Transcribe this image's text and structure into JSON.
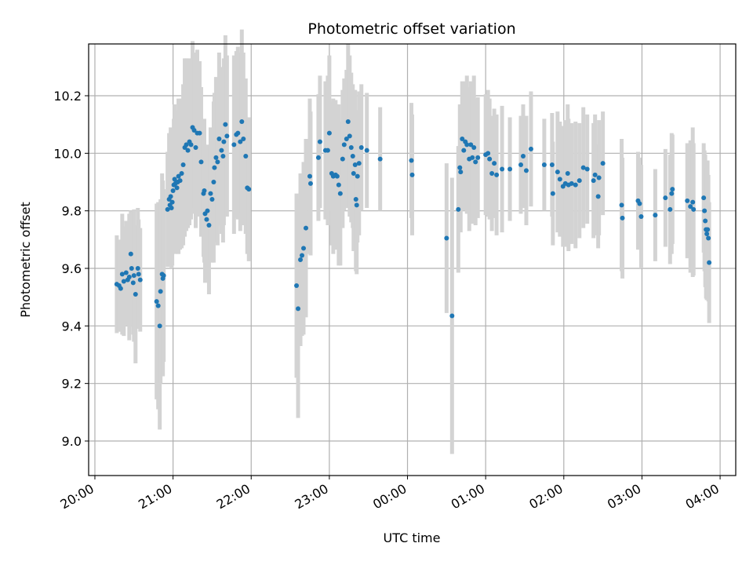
{
  "chart_data": {
    "type": "scatter",
    "title": "Photometric offset variation",
    "xlabel": "UTC time",
    "ylabel": "Photometric offset",
    "x_tick_labels": [
      "20:00",
      "21:00",
      "22:00",
      "23:00",
      "00:00",
      "01:00",
      "02:00",
      "03:00",
      "04:00"
    ],
    "x_tick_hours": [
      0,
      1,
      2,
      3,
      4,
      5,
      6,
      7,
      8
    ],
    "x_unit": "hours since 20:00 UTC",
    "xlim": [
      -0.08,
      8.2
    ],
    "y_ticks": [
      9.0,
      9.2,
      9.4,
      9.6,
      9.8,
      10.0,
      10.2
    ],
    "y_tick_labels": [
      "9.0",
      "9.2",
      "9.4",
      "9.6",
      "9.8",
      "10.0",
      "10.2"
    ],
    "ylim": [
      8.88,
      10.38
    ],
    "grid": true,
    "marker_color": "#1f77b4",
    "errorbar_color": "#d3d3d3",
    "points": [
      [
        0.28,
        9.545,
        0.17
      ],
      [
        0.31,
        9.54,
        0.16
      ],
      [
        0.33,
        9.53,
        0.15
      ],
      [
        0.35,
        9.58,
        0.21
      ],
      [
        0.37,
        9.555,
        0.19
      ],
      [
        0.4,
        9.585,
        0.18
      ],
      [
        0.42,
        9.56,
        0.16
      ],
      [
        0.44,
        9.57,
        0.22
      ],
      [
        0.46,
        9.65,
        0.15
      ],
      [
        0.47,
        9.6,
        0.2
      ],
      [
        0.49,
        9.55,
        0.18
      ],
      [
        0.5,
        9.575,
        0.23
      ],
      [
        0.52,
        9.51,
        0.24
      ],
      [
        0.55,
        9.6,
        0.21
      ],
      [
        0.56,
        9.58,
        0.19
      ],
      [
        0.58,
        9.56,
        0.18
      ],
      [
        0.79,
        9.485,
        0.34
      ],
      [
        0.81,
        9.47,
        0.36
      ],
      [
        0.83,
        9.4,
        0.36
      ],
      [
        0.84,
        9.52,
        0.32
      ],
      [
        0.86,
        9.58,
        0.35
      ],
      [
        0.87,
        9.565,
        0.34
      ],
      [
        0.88,
        9.575,
        0.3
      ],
      [
        0.93,
        9.805,
        0.2
      ],
      [
        0.95,
        9.84,
        0.23
      ],
      [
        0.96,
        9.82,
        0.19
      ],
      [
        0.97,
        9.85,
        0.24
      ],
      [
        0.98,
        9.81,
        0.21
      ],
      [
        0.99,
        9.83,
        0.22
      ],
      [
        1.0,
        9.87,
        0.2
      ],
      [
        1.01,
        9.89,
        0.23
      ],
      [
        1.02,
        9.91,
        0.26
      ],
      [
        1.03,
        9.895,
        0.24
      ],
      [
        1.05,
        9.88,
        0.22
      ],
      [
        1.06,
        9.9,
        0.25
      ],
      [
        1.07,
        9.92,
        0.27
      ],
      [
        1.09,
        9.905,
        0.24
      ],
      [
        1.11,
        9.93,
        0.26
      ],
      [
        1.13,
        9.96,
        0.28
      ],
      [
        1.15,
        10.02,
        0.31
      ],
      [
        1.17,
        10.03,
        0.3
      ],
      [
        1.19,
        10.01,
        0.27
      ],
      [
        1.21,
        10.04,
        0.29
      ],
      [
        1.23,
        10.03,
        0.26
      ],
      [
        1.25,
        10.09,
        0.3
      ],
      [
        1.27,
        10.08,
        0.27
      ],
      [
        1.29,
        10.02,
        0.28
      ],
      [
        1.31,
        10.07,
        0.29
      ],
      [
        1.34,
        10.07,
        0.25
      ],
      [
        1.36,
        9.97,
        0.26
      ],
      [
        1.39,
        9.86,
        0.22
      ],
      [
        1.4,
        9.87,
        0.25
      ],
      [
        1.41,
        9.79,
        0.24
      ],
      [
        1.43,
        9.77,
        0.21
      ],
      [
        1.44,
        9.8,
        0.23
      ],
      [
        1.46,
        9.75,
        0.24
      ],
      [
        1.48,
        9.86,
        0.23
      ],
      [
        1.5,
        9.84,
        0.22
      ],
      [
        1.52,
        9.9,
        0.28
      ],
      [
        1.53,
        9.95,
        0.26
      ],
      [
        1.55,
        9.985,
        0.28
      ],
      [
        1.57,
        9.97,
        0.29
      ],
      [
        1.59,
        10.05,
        0.3
      ],
      [
        1.62,
        10.01,
        0.29
      ],
      [
        1.64,
        9.99,
        0.3
      ],
      [
        1.65,
        10.04,
        0.29
      ],
      [
        1.67,
        10.1,
        0.31
      ],
      [
        1.69,
        10.06,
        0.28
      ],
      [
        1.78,
        10.03,
        0.31
      ],
      [
        1.81,
        10.065,
        0.29
      ],
      [
        1.83,
        10.07,
        0.3
      ],
      [
        1.86,
        10.04,
        0.31
      ],
      [
        1.88,
        10.11,
        0.32
      ],
      [
        1.9,
        10.05,
        0.3
      ],
      [
        1.93,
        9.99,
        0.27
      ],
      [
        1.95,
        9.88,
        0.23
      ],
      [
        1.97,
        9.875,
        0.25
      ],
      [
        2.58,
        9.54,
        0.32
      ],
      [
        2.6,
        9.46,
        0.38
      ],
      [
        2.63,
        9.63,
        0.3
      ],
      [
        2.65,
        9.645,
        0.28
      ],
      [
        2.67,
        9.67,
        0.3
      ],
      [
        2.7,
        9.74,
        0.31
      ],
      [
        2.75,
        9.92,
        0.27
      ],
      [
        2.76,
        9.895,
        0.25
      ],
      [
        2.86,
        9.985,
        0.22
      ],
      [
        2.88,
        10.04,
        0.23
      ],
      [
        2.95,
        10.01,
        0.24
      ],
      [
        2.98,
        10.01,
        0.26
      ],
      [
        3.0,
        10.07,
        0.27
      ],
      [
        3.03,
        9.93,
        0.25
      ],
      [
        3.05,
        9.92,
        0.27
      ],
      [
        3.08,
        9.925,
        0.26
      ],
      [
        3.1,
        9.92,
        0.23
      ],
      [
        3.12,
        9.89,
        0.28
      ],
      [
        3.14,
        9.86,
        0.25
      ],
      [
        3.17,
        9.98,
        0.24
      ],
      [
        3.19,
        10.03,
        0.23
      ],
      [
        3.22,
        10.05,
        0.24
      ],
      [
        3.24,
        10.11,
        0.27
      ],
      [
        3.26,
        10.06,
        0.28
      ],
      [
        3.28,
        10.02,
        0.26
      ],
      [
        3.3,
        9.99,
        0.25
      ],
      [
        3.31,
        9.93,
        0.27
      ],
      [
        3.33,
        9.96,
        0.26
      ],
      [
        3.34,
        9.84,
        0.25
      ],
      [
        3.35,
        9.82,
        0.24
      ],
      [
        3.36,
        9.92,
        0.23
      ],
      [
        3.38,
        9.965,
        0.25
      ],
      [
        3.41,
        10.02,
        0.22
      ],
      [
        3.48,
        10.01,
        0.2
      ],
      [
        3.65,
        9.98,
        0.18
      ],
      [
        4.05,
        9.975,
        0.2
      ],
      [
        4.06,
        9.925,
        0.21
      ],
      [
        4.5,
        9.705,
        0.26
      ],
      [
        4.57,
        9.435,
        0.48
      ],
      [
        4.65,
        9.805,
        0.22
      ],
      [
        4.67,
        9.95,
        0.22
      ],
      [
        4.68,
        9.935,
        0.21
      ],
      [
        4.7,
        10.05,
        0.2
      ],
      [
        4.72,
        10.01,
        0.21
      ],
      [
        4.74,
        10.04,
        0.21
      ],
      [
        4.76,
        10.03,
        0.24
      ],
      [
        4.79,
        9.98,
        0.25
      ],
      [
        4.81,
        10.03,
        0.22
      ],
      [
        4.83,
        9.985,
        0.23
      ],
      [
        4.85,
        10.02,
        0.25
      ],
      [
        4.87,
        9.97,
        0.22
      ],
      [
        4.9,
        9.985,
        0.21
      ],
      [
        5.0,
        9.995,
        0.21
      ],
      [
        5.03,
        10.0,
        0.22
      ],
      [
        5.05,
        9.98,
        0.21
      ],
      [
        5.08,
        9.93,
        0.2
      ],
      [
        5.11,
        9.965,
        0.19
      ],
      [
        5.14,
        9.925,
        0.21
      ],
      [
        5.21,
        9.945,
        0.22
      ],
      [
        5.31,
        9.945,
        0.18
      ],
      [
        5.45,
        9.96,
        0.17
      ],
      [
        5.48,
        9.99,
        0.18
      ],
      [
        5.52,
        9.94,
        0.19
      ],
      [
        5.58,
        10.015,
        0.2
      ],
      [
        5.75,
        9.96,
        0.16
      ],
      [
        5.85,
        9.96,
        0.18
      ],
      [
        5.86,
        9.86,
        0.18
      ],
      [
        5.92,
        9.935,
        0.21
      ],
      [
        5.95,
        9.91,
        0.2
      ],
      [
        5.99,
        9.885,
        0.21
      ],
      [
        6.02,
        9.895,
        0.22
      ],
      [
        6.05,
        9.93,
        0.24
      ],
      [
        6.06,
        9.89,
        0.23
      ],
      [
        6.1,
        9.895,
        0.21
      ],
      [
        6.15,
        9.89,
        0.22
      ],
      [
        6.2,
        9.905,
        0.2
      ],
      [
        6.25,
        9.95,
        0.21
      ],
      [
        6.3,
        9.945,
        0.19
      ],
      [
        6.38,
        9.905,
        0.2
      ],
      [
        6.4,
        9.925,
        0.21
      ],
      [
        6.44,
        9.85,
        0.18
      ],
      [
        6.45,
        9.915,
        0.2
      ],
      [
        6.5,
        9.965,
        0.18
      ],
      [
        6.74,
        9.82,
        0.23
      ],
      [
        6.75,
        9.775,
        0.21
      ],
      [
        6.95,
        9.835,
        0.17
      ],
      [
        6.97,
        9.825,
        0.16
      ],
      [
        6.99,
        9.78,
        0.18
      ],
      [
        7.17,
        9.785,
        0.16
      ],
      [
        7.3,
        9.845,
        0.17
      ],
      [
        7.36,
        9.805,
        0.19
      ],
      [
        7.38,
        9.86,
        0.21
      ],
      [
        7.39,
        9.875,
        0.19
      ],
      [
        7.58,
        9.835,
        0.2
      ],
      [
        7.62,
        9.815,
        0.23
      ],
      [
        7.65,
        9.83,
        0.26
      ],
      [
        7.66,
        9.805,
        0.23
      ],
      [
        7.79,
        9.845,
        0.19
      ],
      [
        7.8,
        9.8,
        0.21
      ],
      [
        7.81,
        9.765,
        0.23
      ],
      [
        7.82,
        9.735,
        0.24
      ],
      [
        7.83,
        9.72,
        0.23
      ],
      [
        7.84,
        9.735,
        0.24
      ],
      [
        7.85,
        9.705,
        0.22
      ],
      [
        7.86,
        9.62,
        0.21
      ]
    ]
  }
}
